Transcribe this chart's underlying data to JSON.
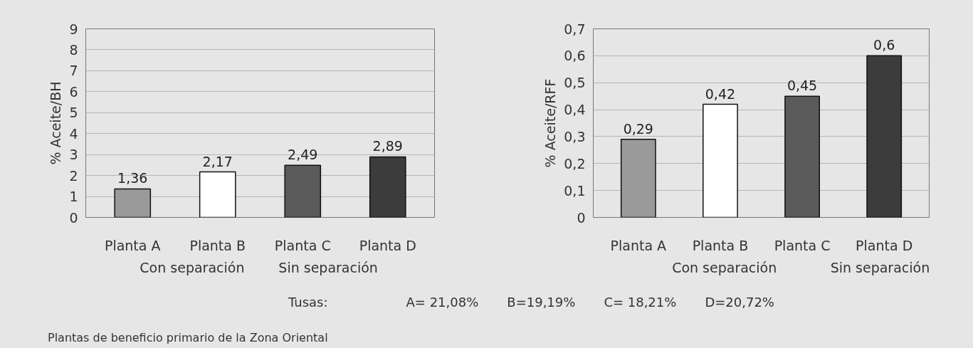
{
  "chart_data": [
    {
      "type": "bar",
      "ylabel": "% Aceite/BH",
      "categories": [
        "Planta A",
        "Planta B",
        "Planta C",
        "Planta D"
      ],
      "values": [
        1.36,
        2.17,
        2.49,
        2.89
      ],
      "colors": [
        "#9a9a9a",
        "#ffffff",
        "#5a5a5a",
        "#3c3c3c"
      ],
      "value_labels": [
        "1,36",
        "2,17",
        "2,49",
        "2,89"
      ],
      "ylim": [
        0,
        9
      ],
      "yticks": [
        0,
        1,
        2,
        3,
        4,
        5,
        6,
        7,
        8,
        9
      ],
      "grid": "y",
      "annotations": [
        "Con separación",
        "Sin separación"
      ]
    },
    {
      "type": "bar",
      "ylabel": "% Aceite/RFF",
      "categories": [
        "Planta A",
        "Planta B",
        "Planta C",
        "Planta D"
      ],
      "values": [
        0.29,
        0.42,
        0.45,
        0.6
      ],
      "colors": [
        "#9a9a9a",
        "#ffffff",
        "#5a5a5a",
        "#3c3c3c"
      ],
      "value_labels": [
        "0,29",
        "0,42",
        "0,45",
        "0,6"
      ],
      "ylim": [
        0,
        0.7
      ],
      "yticks": [
        0,
        {
          "value": 0.1,
          "label": "0,1"
        },
        {
          "value": 0.2,
          "label": "0,2"
        },
        {
          "value": 0.3,
          "label": "0,3"
        },
        {
          "value": 0.4,
          "label": "0,4"
        },
        {
          "value": 0.5,
          "label": "0,5"
        },
        {
          "value": 0.6,
          "label": "0,6"
        },
        {
          "value": 0.7,
          "label": "0,7"
        }
      ],
      "grid": "y",
      "annotations": [
        "Con separación",
        "Sin separación",
        "Tusas:",
        "A= 21,08%",
        "B=19,19%",
        "C= 18,21%",
        "D=20,72%",
        "Plantas de beneficio primario de la Zona Oriental"
      ]
    }
  ]
}
